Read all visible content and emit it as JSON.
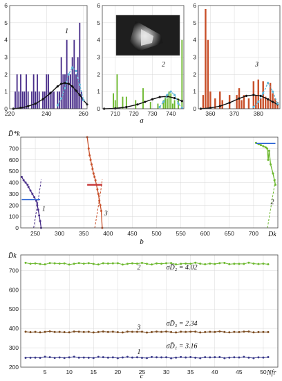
{
  "figure_labels": {
    "a": "a",
    "b": "b",
    "c": "c"
  },
  "chart_data": [
    {
      "panel": "a-1",
      "type": "bar",
      "xlim": [
        220,
        262
      ],
      "ylim": [
        0,
        6
      ],
      "xticks": [
        "220",
        "240",
        "260"
      ],
      "yticks": [
        "0",
        "1",
        "2",
        "3",
        "4",
        "5",
        "6"
      ],
      "label": "1",
      "bar_color": "#4a2f8a",
      "bins_x": [
        223,
        224,
        225,
        226,
        227,
        228,
        229,
        230,
        232,
        233,
        234,
        235,
        236,
        237,
        238,
        239,
        240,
        241,
        242,
        243,
        244,
        245,
        246,
        247,
        248,
        249,
        250,
        251,
        252,
        253,
        254,
        255,
        256,
        257,
        258,
        259,
        260
      ],
      "bins_h": [
        1,
        2,
        1,
        2,
        1,
        1,
        2,
        1,
        1,
        2,
        1,
        2,
        1,
        0,
        1,
        1,
        2,
        2,
        1,
        1,
        1,
        0,
        1,
        1,
        3,
        2,
        2,
        4,
        2,
        2,
        3,
        4,
        2,
        3,
        5,
        1,
        0
      ],
      "fit_black": {
        "x": [
          222,
          226,
          230,
          234,
          238,
          242,
          246,
          248,
          250,
          252,
          254,
          256,
          258,
          260,
          262
        ],
        "y": [
          0,
          0.05,
          0.15,
          0.3,
          0.55,
          0.9,
          1.3,
          1.45,
          1.5,
          1.45,
          1.3,
          1.05,
          0.8,
          0.5,
          0.25
        ]
      },
      "fit_cyan": {
        "x": [
          246,
          248,
          250,
          252,
          254,
          256,
          258,
          260
        ],
        "y": [
          0.2,
          0.6,
          1.2,
          2.0,
          2.4,
          2.2,
          1.4,
          0.5
        ]
      }
    },
    {
      "panel": "a-2",
      "type": "bar",
      "xlim": [
        703,
        747
      ],
      "ylim": [
        0,
        6
      ],
      "xticks": [
        "710",
        "720",
        "730",
        "740"
      ],
      "yticks": [
        "0",
        "1",
        "2",
        "3",
        "4",
        "5",
        "6"
      ],
      "label": "2",
      "bar_color": "#6cb82e",
      "bins_x": [
        709,
        710,
        711,
        714,
        716,
        721,
        725,
        729,
        733,
        736,
        737,
        738,
        739,
        740,
        741,
        742,
        744,
        746
      ],
      "bins_h": [
        0.9,
        0.5,
        2.0,
        0.7,
        0.7,
        0.5,
        1.2,
        0.4,
        0.3,
        0.5,
        0.7,
        0.6,
        1.0,
        0.9,
        0.3,
        0.5,
        0.6,
        4.0
      ],
      "fit_black": {
        "x": [
          704,
          710,
          716,
          722,
          726,
          730,
          734,
          738,
          742,
          746
        ],
        "y": [
          0,
          0.02,
          0.1,
          0.25,
          0.4,
          0.55,
          0.68,
          0.72,
          0.62,
          0.45
        ]
      },
      "fit_cyan": {
        "x": [
          734,
          736,
          738,
          740,
          742,
          744,
          746
        ],
        "y": [
          0.1,
          0.4,
          0.8,
          1.0,
          0.8,
          0.3,
          0.05
        ]
      }
    },
    {
      "panel": "a-3",
      "type": "bar",
      "xlim": [
        355,
        389
      ],
      "ylim": [
        0,
        6
      ],
      "xticks": [
        "360",
        "370",
        "380"
      ],
      "yticks": [
        "0",
        "1",
        "2",
        "3",
        "4",
        "5",
        "6"
      ],
      "label": "3",
      "bar_color": "#c8502a",
      "bins_x": [
        357,
        358,
        359,
        360,
        362,
        364,
        365,
        368,
        371,
        372,
        373,
        374,
        376,
        378,
        379,
        380,
        381,
        382,
        383,
        384,
        385,
        386,
        387,
        388
      ],
      "bins_h": [
        0.8,
        5.8,
        4.0,
        1.0,
        0.6,
        1.0,
        0.5,
        0.8,
        0.8,
        1.2,
        0.5,
        0.8,
        0.6,
        1.6,
        0.8,
        1.7,
        0.6,
        1.6,
        0.7,
        0.5,
        1.5,
        0.9,
        0.6,
        0.4
      ],
      "fit_black": {
        "x": [
          356,
          360,
          364,
          368,
          372,
          375,
          378,
          381,
          384,
          386,
          388
        ],
        "y": [
          0,
          0.05,
          0.15,
          0.35,
          0.6,
          0.75,
          0.8,
          0.75,
          0.55,
          0.4,
          0.25
        ]
      },
      "fit_cyan": {
        "x": [
          378,
          380,
          382,
          384,
          386,
          388
        ],
        "y": [
          0.1,
          0.4,
          0.9,
          1.5,
          1.0,
          0.3
        ]
      }
    },
    {
      "panel": "b",
      "type": "line",
      "xlim": [
        220,
        750
      ],
      "ylim": [
        0,
        800
      ],
      "xticks": [
        "250",
        "300",
        "350",
        "400",
        "450",
        "500",
        "550",
        "600",
        "650",
        "700"
      ],
      "yticks": [
        "0",
        "100",
        "200",
        "300",
        "400",
        "500",
        "600",
        "700"
      ],
      "ylabel": "D̄*k",
      "xlabel": "Dk",
      "series": [
        {
          "label": "1",
          "color": "#4a2f8a",
          "x": [
            222,
            226,
            230,
            234,
            236,
            240,
            244,
            248,
            252,
            254,
            256,
            258,
            260,
            262
          ],
          "y": [
            450,
            420,
            400,
            380,
            360,
            330,
            300,
            270,
            240,
            200,
            160,
            110,
            60,
            0
          ]
        },
        {
          "label": "3",
          "color": "#c8502a",
          "x": [
            357,
            360,
            362,
            364,
            366,
            368,
            370,
            372,
            374,
            376,
            378,
            380,
            382,
            384,
            386,
            388
          ],
          "y": [
            800,
            700,
            640,
            600,
            560,
            520,
            480,
            450,
            420,
            380,
            340,
            300,
            240,
            200,
            150,
            0
          ]
        },
        {
          "label": "2",
          "color": "#6cb82e",
          "x": [
            705,
            710,
            715,
            720,
            725,
            728,
            730,
            732,
            735,
            740,
            743,
            745
          ],
          "y": [
            750,
            740,
            730,
            720,
            710,
            700,
            600,
            680,
            560,
            480,
            420,
            380
          ]
        }
      ]
    },
    {
      "panel": "c",
      "type": "line",
      "xlim": [
        0,
        53
      ],
      "ylim": [
        200,
        780
      ],
      "xticks": [
        "5",
        "10",
        "15",
        "20",
        "25",
        "30",
        "35",
        "40",
        "45",
        "50"
      ],
      "yticks": [
        "200",
        "300",
        "400",
        "500",
        "600",
        "700"
      ],
      "ylabel": "D̄k",
      "xlabel": "Nfr",
      "series": [
        {
          "label": "2",
          "color": "#6cb82e",
          "base": 735,
          "amp": 5,
          "sigma": "σD̄₂ = 4.02"
        },
        {
          "label": "3",
          "color": "#7a4a1e",
          "base": 382,
          "amp": 3,
          "sigma": "σD̄₃ = 2.34"
        },
        {
          "label": "1",
          "color": "#3a3a8a",
          "base": 250,
          "amp": 4,
          "sigma": "σD̄₁ = 3.16"
        }
      ]
    }
  ]
}
